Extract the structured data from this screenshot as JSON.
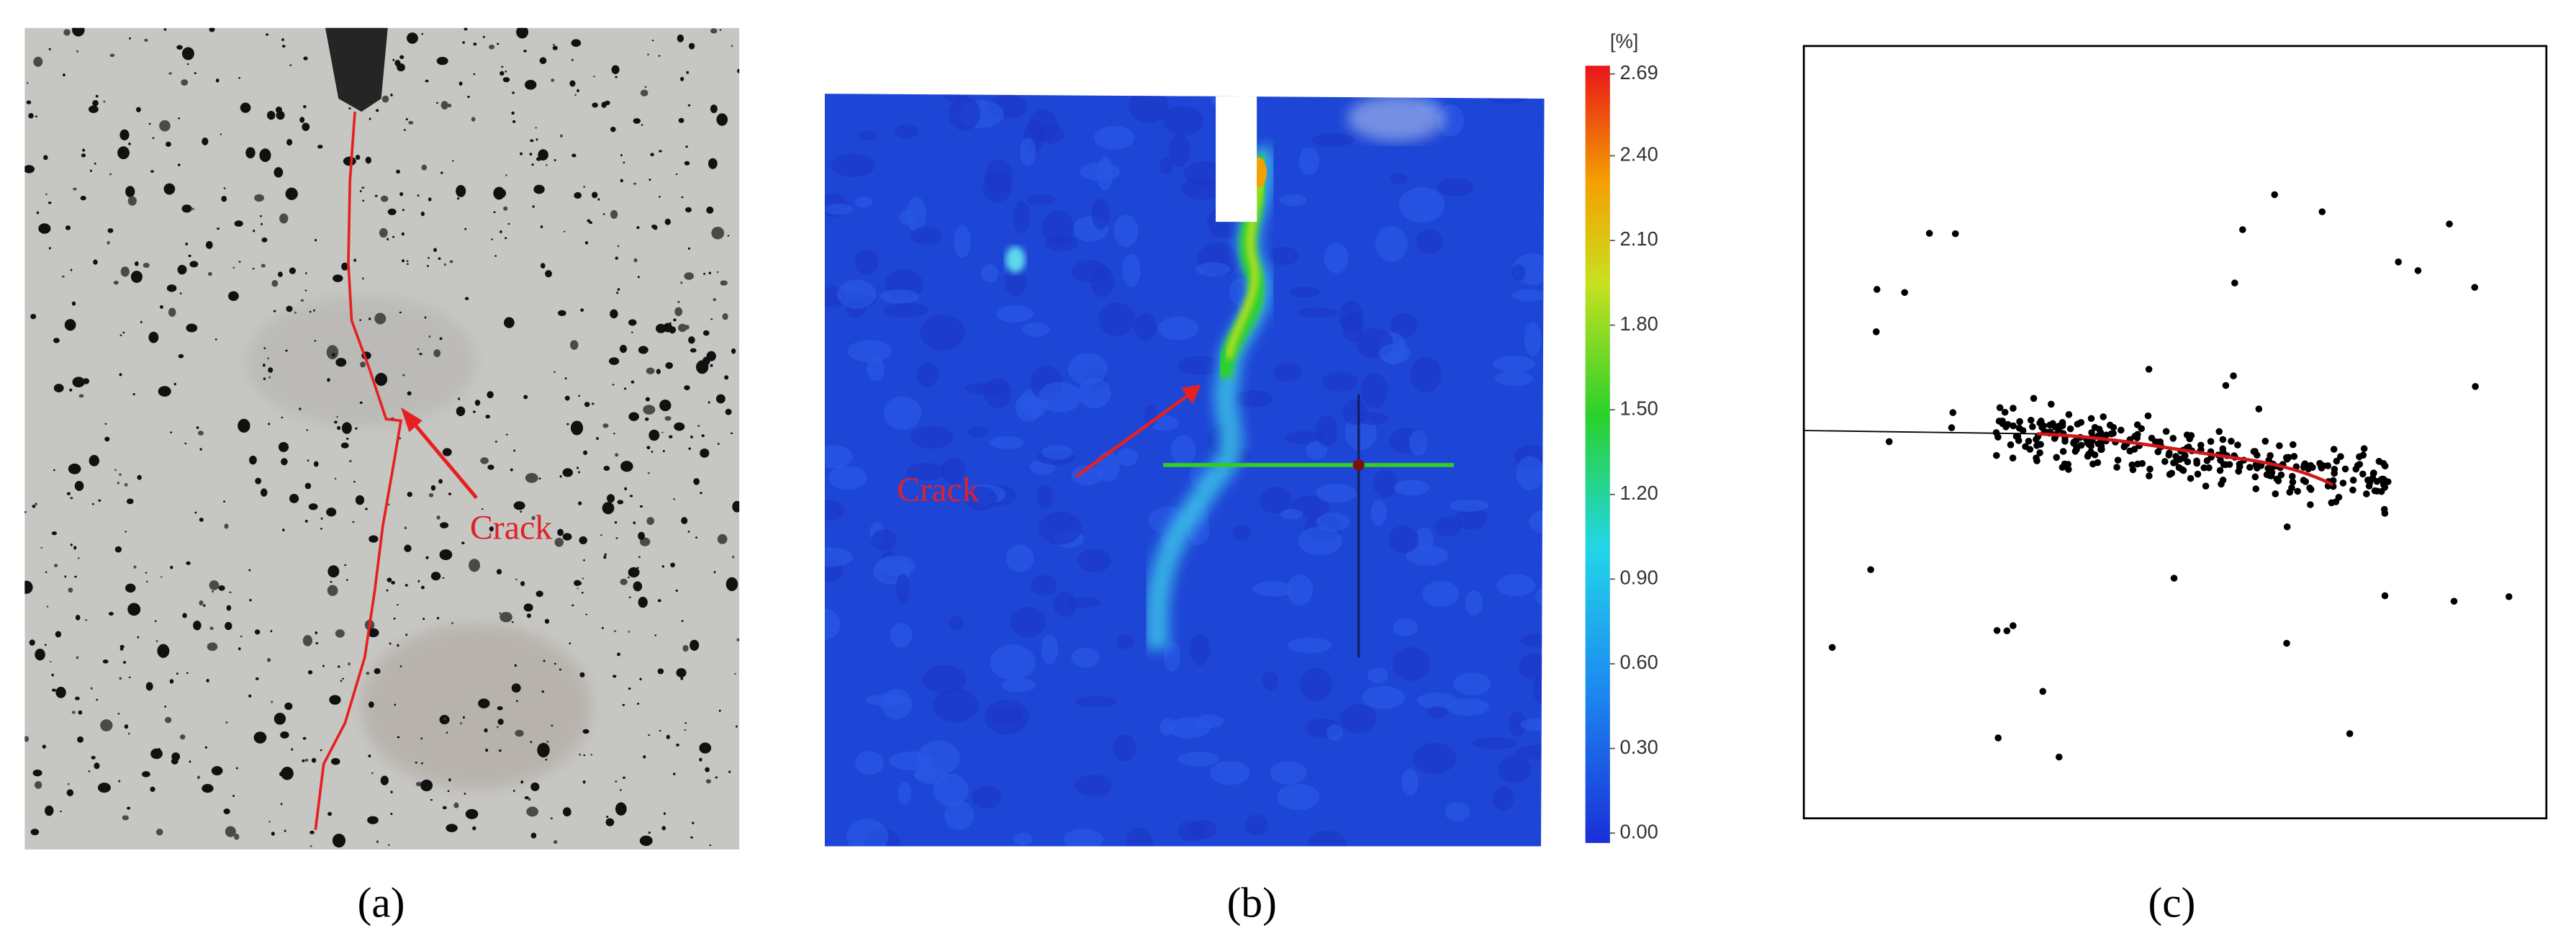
{
  "panels": [
    {
      "caption": "(a)",
      "annotation": "Crack"
    },
    {
      "caption": "(b)",
      "annotation": "Crack",
      "colorbar": {
        "unit": "[%]",
        "lim": [
          0,
          2.69
        ],
        "ticks": [
          2.69,
          {
            "value": 2.4,
            "label": "2.40"
          },
          {
            "value": 2.1,
            "label": "2.10"
          },
          {
            "value": 1.8,
            "label": "1.80"
          },
          {
            "value": 1.5,
            "label": "1.50"
          },
          {
            "value": 1.2,
            "label": "1.20"
          },
          {
            "value": 0.9,
            "label": "0.90"
          },
          {
            "value": 0.6,
            "label": "0.60"
          },
          {
            "value": 0.3,
            "label": "0.30"
          },
          {
            "value": 0,
            "label": "0.00"
          }
        ]
      }
    },
    {
      "caption": "(c)"
    }
  ]
}
